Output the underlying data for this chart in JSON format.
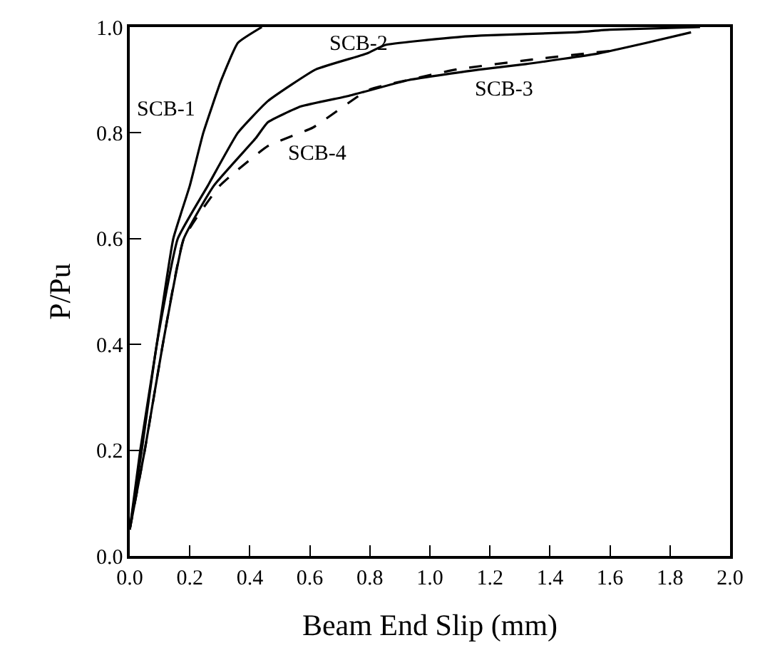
{
  "chart_data": {
    "type": "line",
    "xlabel": "Beam End Slip (mm)",
    "ylabel": "P/Pu",
    "xlim": [
      0,
      2.0
    ],
    "ylim": [
      0,
      1.0
    ],
    "xticks": [
      {
        "value": 0,
        "label": "0.0"
      },
      {
        "value": 0.2,
        "label": "0.2"
      },
      {
        "value": 0.4,
        "label": "0.4"
      },
      {
        "value": 0.6,
        "label": "0.6"
      },
      {
        "value": 0.8,
        "label": "0.8"
      },
      {
        "value": 1.0,
        "label": "1.0"
      },
      {
        "value": 1.2,
        "label": "1.2"
      },
      {
        "value": 1.4,
        "label": "1.4"
      },
      {
        "value": 1.6,
        "label": "1.6"
      },
      {
        "value": 1.8,
        "label": "1.8"
      },
      {
        "value": 2.0,
        "label": "2.0"
      }
    ],
    "yticks": [
      {
        "value": 0,
        "label": "0.0"
      },
      {
        "value": 0.2,
        "label": "0.2"
      },
      {
        "value": 0.4,
        "label": "0.4"
      },
      {
        "value": 0.6,
        "label": "0.6"
      },
      {
        "value": 0.8,
        "label": "0.8"
      },
      {
        "value": 1.0,
        "label": "1.0"
      }
    ],
    "legend": false,
    "marker": "none",
    "series": [
      {
        "name": "SCB-1",
        "color": "#000000",
        "line_style": "solid",
        "x": [
          0,
          0.035,
          0.09,
          0.145,
          0.2,
          0.245,
          0.305,
          0.36,
          0.44
        ],
        "values": [
          0.05,
          0.2,
          0.4,
          0.6,
          0.7,
          0.8,
          0.9,
          0.97,
          1.0
        ]
      },
      {
        "name": "SCB-2",
        "color": "#000000",
        "line_style": "solid",
        "x": [
          0,
          0.04,
          0.09,
          0.16,
          0.26,
          0.36,
          0.46,
          0.62,
          0.79,
          0.85,
          1.07,
          1.17,
          1.48,
          1.6,
          1.9
        ],
        "values": [
          0.05,
          0.2,
          0.4,
          0.6,
          0.7,
          0.8,
          0.86,
          0.92,
          0.95,
          0.966,
          0.98,
          0.984,
          0.99,
          0.995,
          1.0
        ]
      },
      {
        "name": "SCB-3",
        "color": "#000000",
        "line_style": "solid",
        "x": [
          0,
          0.05,
          0.11,
          0.18,
          0.28,
          0.42,
          0.46,
          0.57,
          0.73,
          0.93,
          1.17,
          1.32,
          1.56,
          1.72,
          1.87
        ],
        "values": [
          0.05,
          0.2,
          0.4,
          0.6,
          0.7,
          0.79,
          0.82,
          0.85,
          0.87,
          0.9,
          0.92,
          0.93,
          0.95,
          0.97,
          0.99
        ]
      },
      {
        "name": "SCB-4",
        "color": "#000000",
        "line_style": "dashed",
        "x": [
          0,
          0.05,
          0.11,
          0.18,
          0.3,
          0.46,
          0.61,
          0.79,
          0.85,
          1.09,
          1.36,
          1.6
        ],
        "values": [
          0.05,
          0.2,
          0.4,
          0.6,
          0.7,
          0.775,
          0.81,
          0.88,
          0.89,
          0.92,
          0.94,
          0.955
        ]
      }
    ]
  }
}
